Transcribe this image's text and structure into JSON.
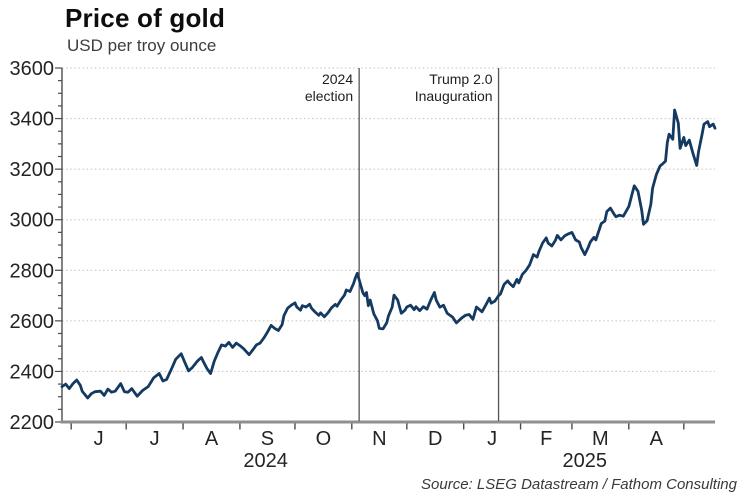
{
  "header": {
    "title": "Price of gold",
    "subtitle": "USD per troy ounce"
  },
  "footer": {
    "source": "Source: LSEG Datastream / Fathom Consulting"
  },
  "colors": {
    "line": "#143a62",
    "grid": "#c2c2c2",
    "axis_dark": "#4c4c4c",
    "axis_gray": "#8f8f8f",
    "event_line": "#555555",
    "text": "#242424"
  },
  "chart_data": {
    "type": "line",
    "title": "Price of gold",
    "subtitle": "USD per troy ounce",
    "ylabel": "USD per troy ounce",
    "xlabel": "",
    "ylim": [
      2200,
      3600
    ],
    "y_ticks": [
      2200,
      2400,
      2600,
      2800,
      3000,
      3200,
      3400,
      3600
    ],
    "y_minor_step": 50,
    "grid": "horizontal-dotted",
    "legend": "none",
    "x_domain": [
      "2024-05-27",
      "2025-05-18"
    ],
    "x_axis": {
      "tick_dates": [
        "2024-06-01",
        "2024-07-01",
        "2024-08-01",
        "2024-09-01",
        "2024-10-01",
        "2024-11-01",
        "2024-12-01",
        "2025-01-01",
        "2025-02-01",
        "2025-03-01",
        "2025-04-01",
        "2025-05-01"
      ],
      "month_labels": [
        "J",
        "J",
        "A",
        "S",
        "O",
        "N",
        "D",
        "J",
        "F",
        "M",
        "A"
      ],
      "year_labels": [
        {
          "text": "2024",
          "date": "2024-09-15"
        },
        {
          "text": "2025",
          "date": "2025-03-08"
        }
      ]
    },
    "annotations": [
      {
        "date": "2024-11-05",
        "lines": [
          "2024",
          "election"
        ]
      },
      {
        "date": "2025-01-20",
        "lines": [
          "Trump 2.0",
          "Inauguration"
        ]
      }
    ],
    "series": [
      {
        "name": "Gold price, USD per troy ounce",
        "points": [
          [
            "2024-05-27",
            2340
          ],
          [
            "2024-05-29",
            2350
          ],
          [
            "2024-05-31",
            2332
          ],
          [
            "2024-06-02",
            2352
          ],
          [
            "2024-06-04",
            2366
          ],
          [
            "2024-06-06",
            2345
          ],
          [
            "2024-06-07",
            2322
          ],
          [
            "2024-06-10",
            2295
          ],
          [
            "2024-06-12",
            2312
          ],
          [
            "2024-06-14",
            2320
          ],
          [
            "2024-06-17",
            2322
          ],
          [
            "2024-06-19",
            2305
          ],
          [
            "2024-06-21",
            2330
          ],
          [
            "2024-06-23",
            2318
          ],
          [
            "2024-06-25",
            2322
          ],
          [
            "2024-06-28",
            2352
          ],
          [
            "2024-06-30",
            2320
          ],
          [
            "2024-07-02",
            2318
          ],
          [
            "2024-07-04",
            2332
          ],
          [
            "2024-07-07",
            2302
          ],
          [
            "2024-07-10",
            2325
          ],
          [
            "2024-07-13",
            2340
          ],
          [
            "2024-07-16",
            2375
          ],
          [
            "2024-07-19",
            2392
          ],
          [
            "2024-07-21",
            2362
          ],
          [
            "2024-07-23",
            2368
          ],
          [
            "2024-07-26",
            2415
          ],
          [
            "2024-07-28",
            2448
          ],
          [
            "2024-07-31",
            2470
          ],
          [
            "2024-08-02",
            2435
          ],
          [
            "2024-08-04",
            2402
          ],
          [
            "2024-08-06",
            2415
          ],
          [
            "2024-08-09",
            2442
          ],
          [
            "2024-08-11",
            2455
          ],
          [
            "2024-08-12",
            2440
          ],
          [
            "2024-08-14",
            2412
          ],
          [
            "2024-08-16",
            2392
          ],
          [
            "2024-08-18",
            2440
          ],
          [
            "2024-08-20",
            2475
          ],
          [
            "2024-08-22",
            2505
          ],
          [
            "2024-08-24",
            2500
          ],
          [
            "2024-08-26",
            2515
          ],
          [
            "2024-08-28",
            2495
          ],
          [
            "2024-08-30",
            2512
          ],
          [
            "2024-09-01",
            2502
          ],
          [
            "2024-09-03",
            2490
          ],
          [
            "2024-09-06",
            2466
          ],
          [
            "2024-09-08",
            2485
          ],
          [
            "2024-09-10",
            2505
          ],
          [
            "2024-09-12",
            2512
          ],
          [
            "2024-09-14",
            2532
          ],
          [
            "2024-09-16",
            2555
          ],
          [
            "2024-09-18",
            2582
          ],
          [
            "2024-09-20",
            2570
          ],
          [
            "2024-09-22",
            2562
          ],
          [
            "2024-09-24",
            2585
          ],
          [
            "2024-09-25",
            2620
          ],
          [
            "2024-09-27",
            2650
          ],
          [
            "2024-09-29",
            2662
          ],
          [
            "2024-10-01",
            2671
          ],
          [
            "2024-10-02",
            2655
          ],
          [
            "2024-10-04",
            2642
          ],
          [
            "2024-10-05",
            2660
          ],
          [
            "2024-10-07",
            2655
          ],
          [
            "2024-10-09",
            2666
          ],
          [
            "2024-10-10",
            2650
          ],
          [
            "2024-10-12",
            2635
          ],
          [
            "2024-10-14",
            2622
          ],
          [
            "2024-10-15",
            2632
          ],
          [
            "2024-10-17",
            2616
          ],
          [
            "2024-10-19",
            2632
          ],
          [
            "2024-10-21",
            2652
          ],
          [
            "2024-10-23",
            2665
          ],
          [
            "2024-10-24",
            2658
          ],
          [
            "2024-10-26",
            2682
          ],
          [
            "2024-10-28",
            2702
          ],
          [
            "2024-10-29",
            2722
          ],
          [
            "2024-10-31",
            2716
          ],
          [
            "2024-11-02",
            2748
          ],
          [
            "2024-11-03",
            2772
          ],
          [
            "2024-11-04",
            2788
          ],
          [
            "2024-11-05",
            2762
          ],
          [
            "2024-11-07",
            2712
          ],
          [
            "2024-11-08",
            2700
          ],
          [
            "2024-11-09",
            2712
          ],
          [
            "2024-11-10",
            2660
          ],
          [
            "2024-11-11",
            2682
          ],
          [
            "2024-11-13",
            2628
          ],
          [
            "2024-11-15",
            2600
          ],
          [
            "2024-11-16",
            2570
          ],
          [
            "2024-11-18",
            2568
          ],
          [
            "2024-11-20",
            2592
          ],
          [
            "2024-11-21",
            2620
          ],
          [
            "2024-11-23",
            2655
          ],
          [
            "2024-11-24",
            2702
          ],
          [
            "2024-11-26",
            2682
          ],
          [
            "2024-11-28",
            2630
          ],
          [
            "2024-11-30",
            2642
          ],
          [
            "2024-12-01",
            2655
          ],
          [
            "2024-12-03",
            2662
          ],
          [
            "2024-12-05",
            2644
          ],
          [
            "2024-12-06",
            2656
          ],
          [
            "2024-12-08",
            2640
          ],
          [
            "2024-12-10",
            2656
          ],
          [
            "2024-12-12",
            2646
          ],
          [
            "2024-12-14",
            2682
          ],
          [
            "2024-12-16",
            2712
          ],
          [
            "2024-12-17",
            2682
          ],
          [
            "2024-12-19",
            2654
          ],
          [
            "2024-12-21",
            2662
          ],
          [
            "2024-12-23",
            2630
          ],
          [
            "2024-12-26",
            2614
          ],
          [
            "2024-12-28",
            2592
          ],
          [
            "2024-12-31",
            2612
          ],
          [
            "2025-01-02",
            2622
          ],
          [
            "2025-01-04",
            2625
          ],
          [
            "2025-01-06",
            2606
          ],
          [
            "2025-01-08",
            2655
          ],
          [
            "2025-01-11",
            2636
          ],
          [
            "2025-01-13",
            2662
          ],
          [
            "2025-01-15",
            2690
          ],
          [
            "2025-01-16",
            2670
          ],
          [
            "2025-01-18",
            2678
          ],
          [
            "2025-01-20",
            2700
          ],
          [
            "2025-01-21",
            2706
          ],
          [
            "2025-01-23",
            2744
          ],
          [
            "2025-01-25",
            2758
          ],
          [
            "2025-01-26",
            2748
          ],
          [
            "2025-01-28",
            2735
          ],
          [
            "2025-01-30",
            2764
          ],
          [
            "2025-01-31",
            2750
          ],
          [
            "2025-02-02",
            2784
          ],
          [
            "2025-02-04",
            2800
          ],
          [
            "2025-02-06",
            2822
          ],
          [
            "2025-02-08",
            2862
          ],
          [
            "2025-02-10",
            2852
          ],
          [
            "2025-02-11",
            2874
          ],
          [
            "2025-02-13",
            2908
          ],
          [
            "2025-02-15",
            2928
          ],
          [
            "2025-02-16",
            2908
          ],
          [
            "2025-02-18",
            2896
          ],
          [
            "2025-02-20",
            2918
          ],
          [
            "2025-02-21",
            2938
          ],
          [
            "2025-02-23",
            2920
          ],
          [
            "2025-02-25",
            2936
          ],
          [
            "2025-02-27",
            2944
          ],
          [
            "2025-03-01",
            2950
          ],
          [
            "2025-03-03",
            2920
          ],
          [
            "2025-03-05",
            2912
          ],
          [
            "2025-03-06",
            2890
          ],
          [
            "2025-03-08",
            2862
          ],
          [
            "2025-03-10",
            2892
          ],
          [
            "2025-03-11",
            2912
          ],
          [
            "2025-03-13",
            2930
          ],
          [
            "2025-03-14",
            2920
          ],
          [
            "2025-03-17",
            2985
          ],
          [
            "2025-03-19",
            2995
          ],
          [
            "2025-03-20",
            3032
          ],
          [
            "2025-03-22",
            3046
          ],
          [
            "2025-03-24",
            3022
          ],
          [
            "2025-03-25",
            3012
          ],
          [
            "2025-03-27",
            3018
          ],
          [
            "2025-03-29",
            3014
          ],
          [
            "2025-04-01",
            3052
          ],
          [
            "2025-04-03",
            3108
          ],
          [
            "2025-04-04",
            3134
          ],
          [
            "2025-04-06",
            3112
          ],
          [
            "2025-04-08",
            3040
          ],
          [
            "2025-04-09",
            2982
          ],
          [
            "2025-04-11",
            2996
          ],
          [
            "2025-04-13",
            3060
          ],
          [
            "2025-04-14",
            3125
          ],
          [
            "2025-04-16",
            3178
          ],
          [
            "2025-04-18",
            3212
          ],
          [
            "2025-04-19",
            3218
          ],
          [
            "2025-04-21",
            3232
          ],
          [
            "2025-04-22",
            3305
          ],
          [
            "2025-04-23",
            3338
          ],
          [
            "2025-04-25",
            3318
          ],
          [
            "2025-04-26",
            3434
          ],
          [
            "2025-04-28",
            3382
          ],
          [
            "2025-04-29",
            3282
          ],
          [
            "2025-05-01",
            3325
          ],
          [
            "2025-05-02",
            3293
          ],
          [
            "2025-05-04",
            3315
          ],
          [
            "2025-05-06",
            3262
          ],
          [
            "2025-05-08",
            3215
          ],
          [
            "2025-05-09",
            3268
          ],
          [
            "2025-05-11",
            3340
          ],
          [
            "2025-05-12",
            3378
          ],
          [
            "2025-05-14",
            3388
          ],
          [
            "2025-05-15",
            3368
          ],
          [
            "2025-05-17",
            3378
          ],
          [
            "2025-05-18",
            3362
          ]
        ]
      }
    ]
  }
}
